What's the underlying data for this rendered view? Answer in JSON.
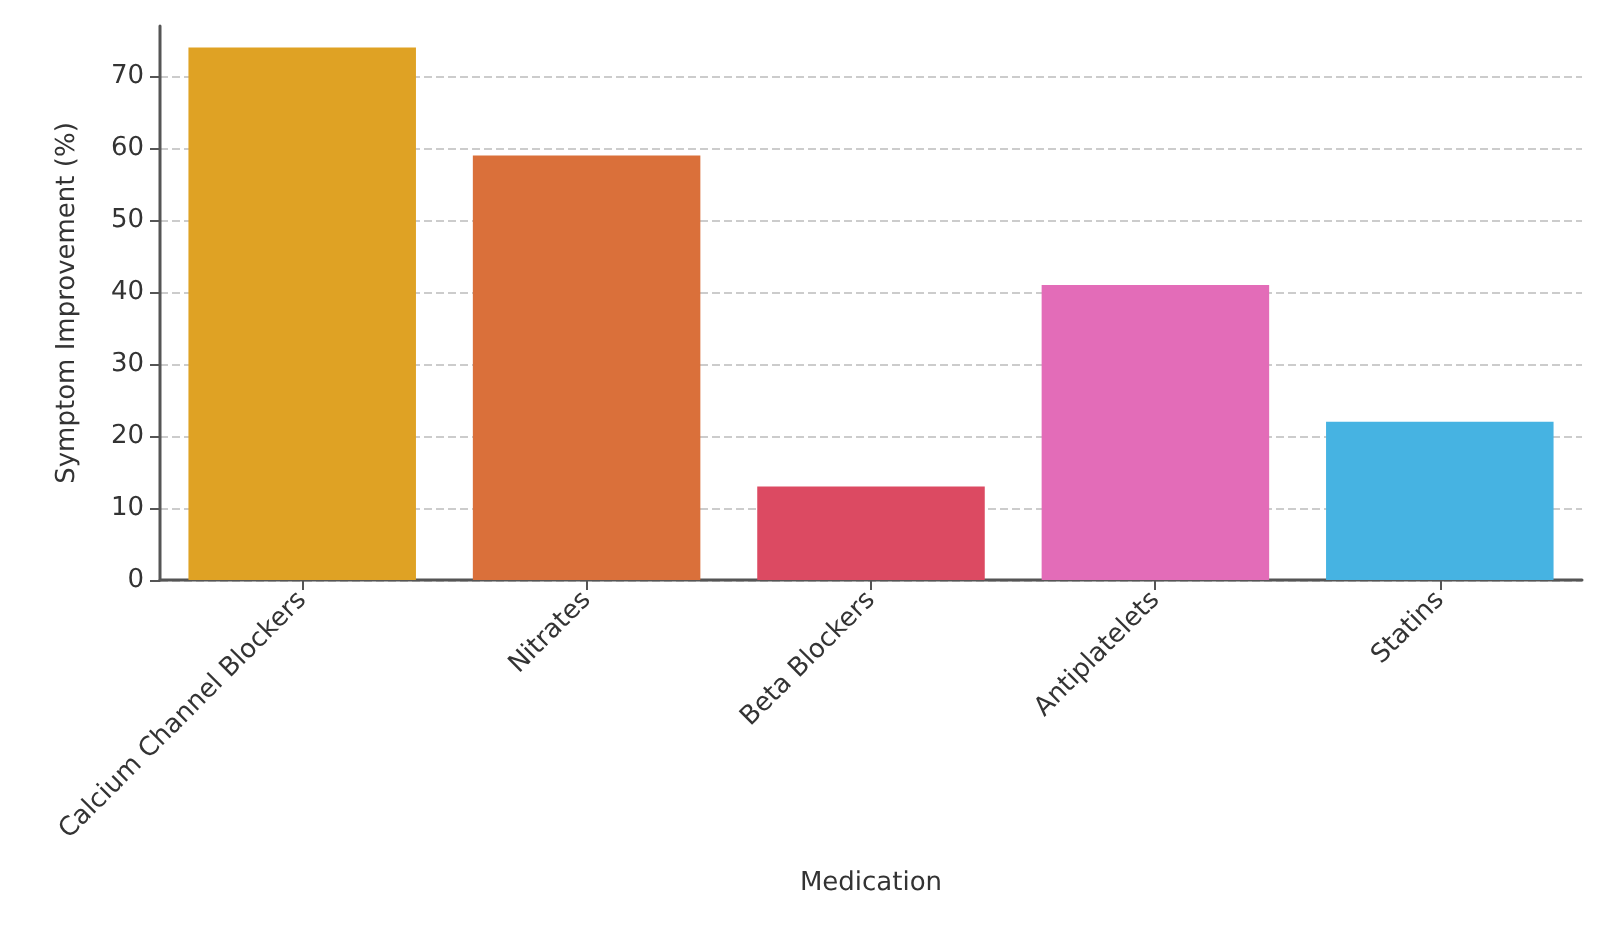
{
  "chart_data": {
    "type": "bar",
    "xlabel": "Medication",
    "ylabel": "Symptom Improvement (%)",
    "categories": [
      "Calcium Channel Blockers",
      "Nitrates",
      "Beta Blockers",
      "Antiplatelets",
      "Statins"
    ],
    "values": [
      74,
      59,
      13,
      41,
      22
    ],
    "colors": [
      "#dfa224",
      "#da703a",
      "#dc4a62",
      "#e36cb8",
      "#46b3e2"
    ],
    "ylim": [
      0,
      77
    ],
    "yticks": [
      0,
      10,
      20,
      30,
      40,
      50,
      60,
      70
    ],
    "grid": "y"
  }
}
